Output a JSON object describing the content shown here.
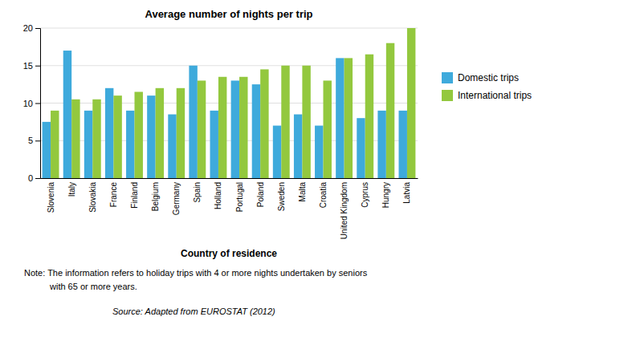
{
  "chart_data": {
    "type": "bar",
    "title": "Average number of nights per trip",
    "x_label": "Country of residence",
    "categories": [
      "Slovenia",
      "Italy",
      "Slovakia",
      "France",
      "Finland",
      "Belgium",
      "Germany",
      "Spain",
      "Holland",
      "Portugal",
      "Poland",
      "Sweden",
      "Malta",
      "Croatia",
      "United Kingdom",
      "Cyprus",
      "Hungry",
      "Latvia"
    ],
    "series": [
      {
        "name": "Domestic trips",
        "color": "#3eaadc",
        "values": [
          7.5,
          17,
          9,
          12,
          9,
          11,
          8.5,
          15,
          9,
          13,
          12.5,
          7,
          8.5,
          7,
          16,
          8,
          9,
          9
        ]
      },
      {
        "name": "International trips",
        "color": "#93c83e",
        "values": [
          9,
          10.5,
          10.5,
          11,
          11.5,
          12,
          12,
          13,
          13.5,
          13.5,
          14.5,
          15,
          15,
          13,
          16,
          16.5,
          18,
          20
        ]
      }
    ],
    "ylim": [
      0,
      20
    ],
    "yticks": [
      0,
      5,
      10,
      15,
      20
    ],
    "grid": true,
    "legend": "right",
    "notes": [
      "Note: The information refers to holiday trips with 4 or more nights undertaken by seniors",
      "with 65 or more years."
    ],
    "source": "Source: Adapted from EUROSTAT (2012)"
  }
}
